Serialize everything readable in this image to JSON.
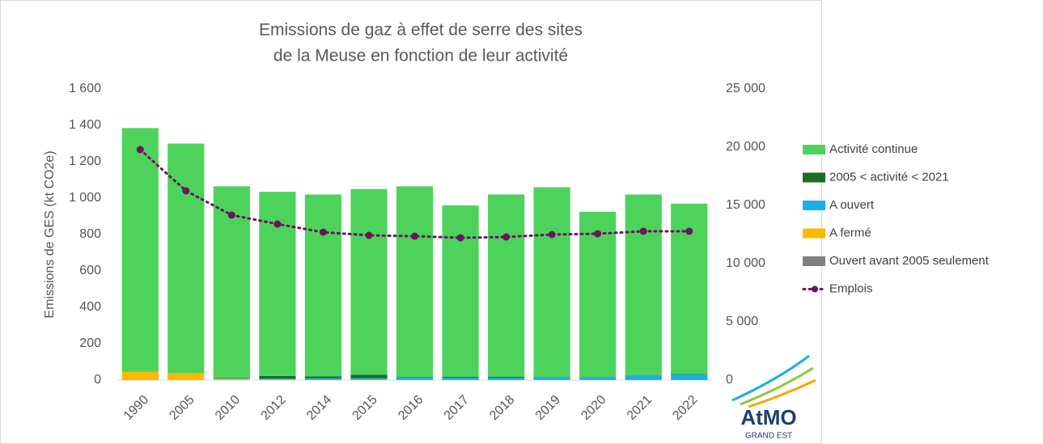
{
  "chart_data": {
    "type": "bar",
    "title": [
      "Emissions de gaz à effet de serre des sites",
      "de la Meuse en fonction de leur activité"
    ],
    "y_label": "Emissions de GES (kt CO2e)",
    "categories": [
      "1990",
      "2005",
      "2010",
      "2012",
      "2014",
      "2015",
      "2016",
      "2017",
      "2018",
      "2019",
      "2020",
      "2021",
      "2022"
    ],
    "stacked": true,
    "series": [
      {
        "name": "Activité continue",
        "color": "#4dd35c",
        "values": [
          1340,
          1262,
          1051,
          1012,
          1000,
          1020,
          1046,
          942,
          1001,
          1041,
          906,
          992,
          937
        ]
      },
      {
        "name": "2005  < activité < 2021",
        "color": "#1e6b27",
        "values": [
          0,
          0,
          3,
          15,
          10,
          20,
          3,
          5,
          6,
          2,
          2,
          2,
          2
        ]
      },
      {
        "name": "A ouvert",
        "color": "#1aaee8",
        "values": [
          0,
          0,
          3,
          5,
          8,
          8,
          15,
          12,
          12,
          16,
          16,
          25,
          30
        ]
      },
      {
        "name": "A fermé",
        "color": "#fcb900",
        "values": [
          45,
          38,
          8,
          3,
          2,
          2,
          1,
          1,
          1,
          1,
          1,
          1,
          1
        ]
      },
      {
        "name": "Ouvert avant 2005 seulement",
        "color": "#7f7f7f",
        "values": [
          0,
          0,
          0,
          0,
          0,
          0,
          0,
          0,
          0,
          0,
          0,
          0,
          0
        ]
      },
      {
        "name": "Emplois",
        "type": "line",
        "axis": "y2",
        "color": "#6b1560",
        "values": [
          19790,
          16250,
          14170,
          13400,
          12700,
          12430,
          12360,
          12220,
          12290,
          12500,
          12570,
          12780,
          12780
        ]
      }
    ],
    "ylim": [
      0,
      1600
    ],
    "yticks": [
      0,
      200,
      400,
      600,
      800,
      {
        "value": 1000,
        "label": "1 000"
      },
      {
        "value": 1200,
        "label": "1 200"
      },
      {
        "value": 1400,
        "label": "1 400"
      },
      {
        "value": 1600,
        "label": "1 600"
      }
    ],
    "y2lim": [
      0,
      25000
    ],
    "y2ticks": [
      0,
      {
        "value": 5000,
        "label": "5 000"
      },
      {
        "value": 10000,
        "label": "10 000"
      },
      {
        "value": 15000,
        "label": "15 000"
      },
      {
        "value": 20000,
        "label": "20 000"
      },
      {
        "value": 25000,
        "label": "25 000"
      }
    ],
    "legend": "right",
    "annotations": [
      "AtMO",
      "GRAND EST"
    ]
  }
}
